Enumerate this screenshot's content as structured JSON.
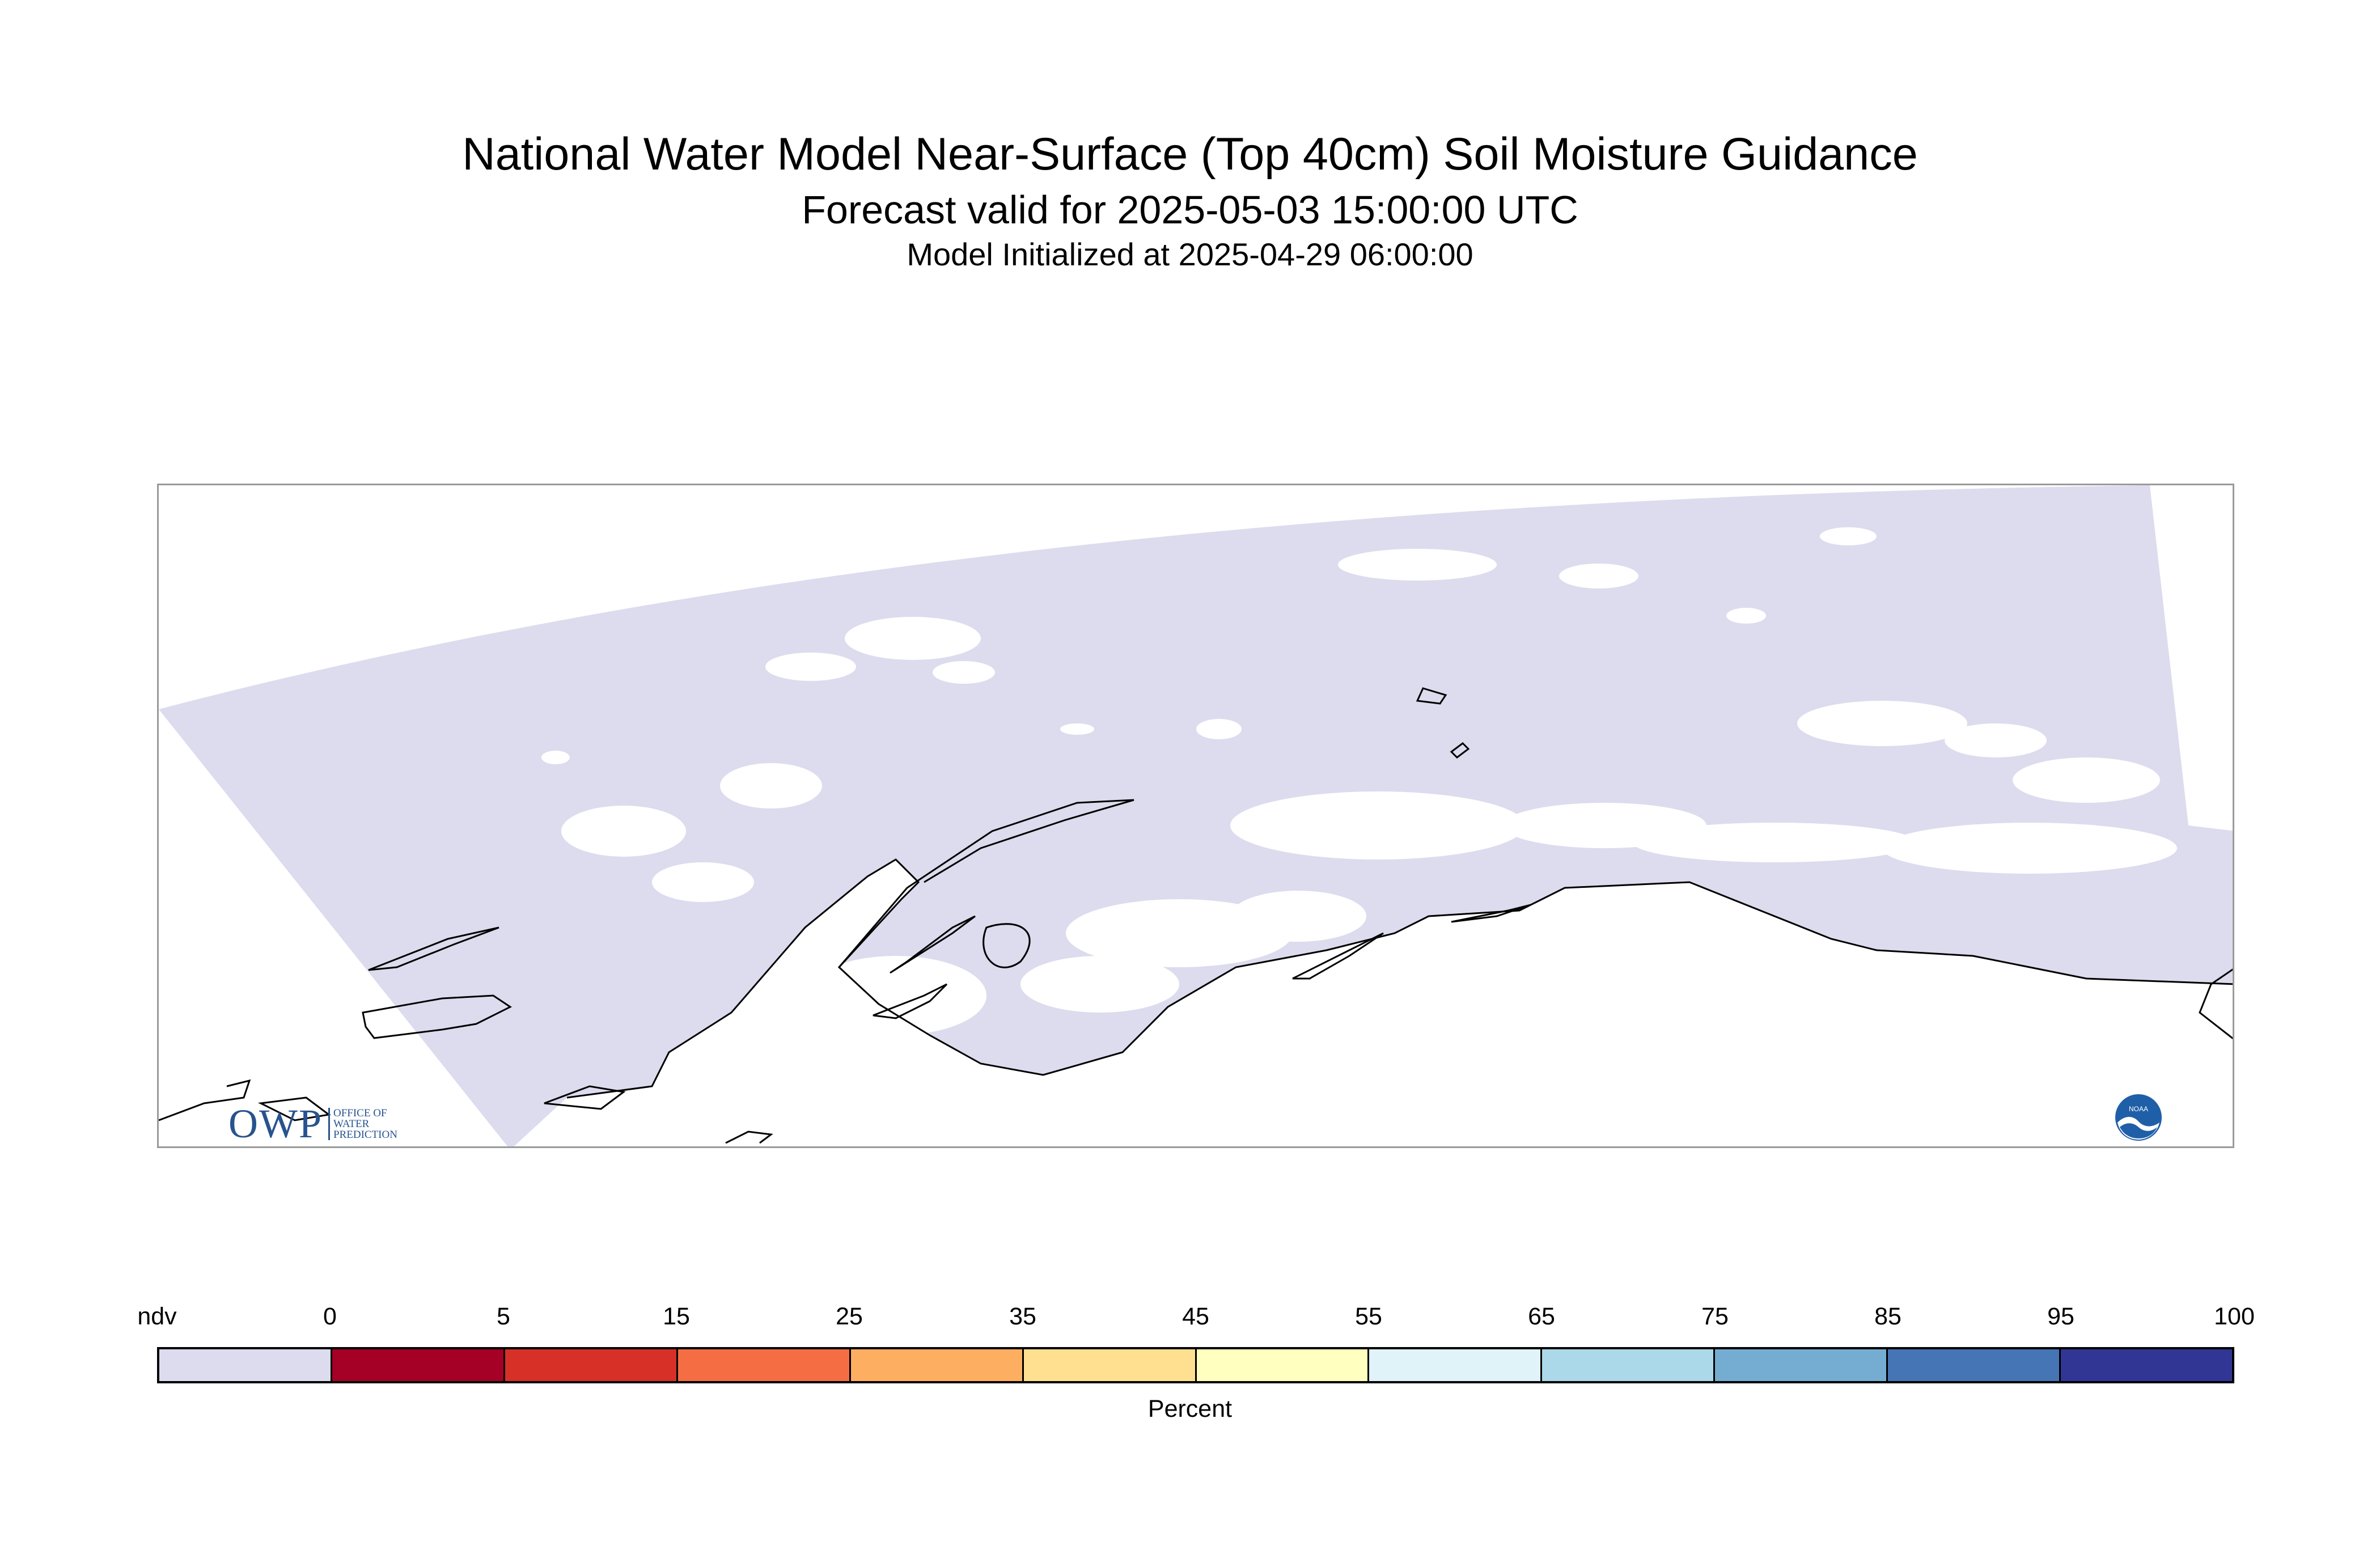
{
  "header": {
    "title": "National Water Model Near-Surface (Top 40cm) Soil Moisture Guidance",
    "subtitle": "Forecast valid for 2025-05-03 15:00:00 UTC",
    "initialized": "Model Initialized at 2025-04-29 06:00:00"
  },
  "map": {
    "region_fill_color": "#dcdcee",
    "no_data_color": "#ffffff",
    "coastline_color": "#000000",
    "frame_color": "#9a9a9a"
  },
  "logos": {
    "owp_mark": "OWP",
    "owp_text": "Office of Water Prediction",
    "noaa_text": "NOAA"
  },
  "legend": {
    "unit": "Percent",
    "tick_labels": [
      "ndv",
      "0",
      "5",
      "15",
      "25",
      "35",
      "45",
      "55",
      "65",
      "75",
      "85",
      "95",
      "100"
    ],
    "colors": [
      "#dcdcee",
      "#a50026",
      "#d73027",
      "#f46d43",
      "#fdae61",
      "#fee090",
      "#ffffbf",
      "#e0f3f8",
      "#abd9e9",
      "#74add1",
      "#4575b4",
      "#313695"
    ]
  }
}
